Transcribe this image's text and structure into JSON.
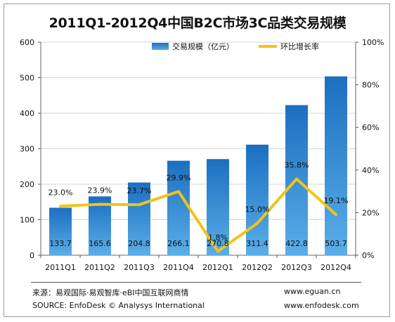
{
  "title": "2011Q1-2012Q4中国B2C市场3C品类交易规模",
  "colors": {
    "bar_top": "#1c6fc0",
    "bar_bottom": "#5aaee8",
    "line": "#f2c318",
    "grid": "#d4d4d4"
  },
  "chart_data": {
    "type": "bar",
    "title": "2011Q1-2012Q4中国B2C市场3C品类交易规模",
    "categories": [
      "2011Q1",
      "2011Q2",
      "2011Q3",
      "2011Q4",
      "2012Q1",
      "2012Q2",
      "2012Q3",
      "2012Q4"
    ],
    "series": [
      {
        "name": "交易规模（亿元）",
        "type": "bar",
        "axis": "left",
        "values": [
          133.7,
          165.6,
          204.8,
          266.1,
          270.8,
          311.4,
          422.8,
          503.7
        ],
        "labels": [
          "133.7",
          "165.6",
          "204.8",
          "266.1",
          "270.8",
          "311.4",
          "422.8",
          "503.7"
        ]
      },
      {
        "name": "环比增长率",
        "type": "line",
        "axis": "right",
        "values": [
          23.0,
          23.9,
          23.7,
          29.9,
          1.8,
          15.0,
          35.8,
          19.1
        ],
        "labels": [
          "23.0%",
          "23.9%",
          "23.7%",
          "29.9%",
          "1.8%",
          "15.0%",
          "35.8%",
          "19.1%"
        ]
      }
    ],
    "y_left": {
      "range": [
        0,
        600
      ],
      "ticks": [
        0,
        100,
        200,
        300,
        400,
        500,
        600
      ],
      "tick_labels": [
        "0",
        "100",
        "200",
        "300",
        "400",
        "500",
        "600"
      ]
    },
    "y_right": {
      "range": [
        0,
        100
      ],
      "ticks": [
        0,
        20,
        40,
        60,
        80,
        100
      ],
      "tick_labels": [
        "0%",
        "20%",
        "40%",
        "60%",
        "80%",
        "100%"
      ]
    },
    "grid": true,
    "legend_position": "top-right"
  },
  "footer": {
    "source_cn": "来源：易观国际·易观智库·eBI中国互联网商情",
    "source_en": "SOURCE:  EnfoDesk © Analysys International",
    "site_1": "www.eguan.cn",
    "site_2": "www.enfodesk.com"
  }
}
